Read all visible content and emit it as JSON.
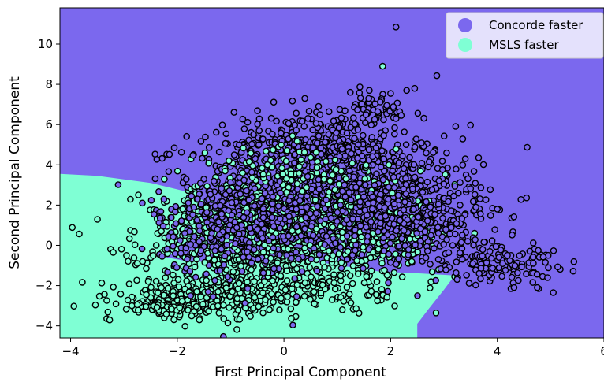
{
  "chart_data": {
    "type": "scatter",
    "title": "",
    "xlabel": "First Principal Component",
    "ylabel": "Second Principal Component",
    "xlim": [
      -4.2,
      6.0
    ],
    "ylim": [
      -4.6,
      11.8
    ],
    "xticks": [
      -4,
      -2,
      0,
      2,
      4,
      6
    ],
    "yticks": [
      -4,
      -2,
      0,
      2,
      4,
      6,
      8,
      10
    ],
    "xtick_labels": [
      "−4",
      "−2",
      "0",
      "2",
      "4",
      "6"
    ],
    "ytick_labels": [
      "−4",
      "−2",
      "0",
      "2",
      "4",
      "6",
      "8",
      "10"
    ],
    "grid": false,
    "legend_position": "top-right",
    "background_regions": {
      "concorde_color": "#7b68ee",
      "msls_color": "#7fffd4",
      "msls_boundary": [
        [
          -4.2,
          3.55
        ],
        [
          -3.5,
          3.45
        ],
        [
          -2.5,
          3.1
        ],
        [
          -1.8,
          2.65
        ],
        [
          -1.5,
          2.2
        ],
        [
          -1.4,
          1.4
        ],
        [
          -1.5,
          0.3
        ],
        [
          -2.0,
          -0.4
        ],
        [
          -2.3,
          -0.55
        ],
        [
          -1.8,
          -0.8
        ],
        [
          -1.0,
          -0.85
        ],
        [
          -0.3,
          -0.6
        ],
        [
          0.2,
          -0.7
        ],
        [
          0.8,
          -0.9
        ],
        [
          1.8,
          -1.3
        ],
        [
          2.6,
          -1.4
        ],
        [
          3.2,
          -1.5
        ],
        [
          3.0,
          -2.2
        ],
        [
          2.7,
          -3.2
        ],
        [
          2.5,
          -3.9
        ],
        [
          2.5,
          -4.6
        ],
        [
          -4.2,
          -4.6
        ]
      ],
      "msls_wedge": [
        [
          -2.6,
          2.7
        ],
        [
          -1.75,
          2.55
        ],
        [
          -1.6,
          2.05
        ],
        [
          -2.2,
          2.45
        ]
      ]
    },
    "series": [
      {
        "name": "Concorde faster",
        "color": "#7b68ee",
        "clusters": [
          {
            "cx": 0.8,
            "cy": 2.6,
            "sx": 1.25,
            "sy": 1.7,
            "n": 1100
          },
          {
            "cx": 0.6,
            "cy": 5.0,
            "sx": 0.75,
            "sy": 1.0,
            "n": 220
          },
          {
            "cx": 2.3,
            "cy": 1.5,
            "sx": 0.7,
            "sy": 1.0,
            "n": 320
          },
          {
            "cx": 3.9,
            "cy": -0.8,
            "sx": 0.6,
            "sy": 0.55,
            "n": 150
          },
          {
            "cx": -0.8,
            "cy": 0.9,
            "sx": 0.8,
            "sy": 1.3,
            "n": 300
          },
          {
            "cx": 1.6,
            "cy": 6.8,
            "sx": 0.4,
            "sy": 0.45,
            "n": 45
          }
        ],
        "extra_points": [
          [
            2.1,
            10.85
          ],
          [
            5.05,
            -2.35
          ],
          [
            4.75,
            -2.1
          ],
          [
            3.65,
            4.35
          ],
          [
            3.4,
            4.3
          ],
          [
            1.6,
            7.7
          ],
          [
            2.45,
            7.8
          ],
          [
            2.3,
            7.7
          ],
          [
            3.6,
            1.9
          ],
          [
            4.0,
            1.8
          ],
          [
            3.3,
            2.0
          ],
          [
            2.0,
            7.55
          ]
        ]
      },
      {
        "name": "MSLS faster",
        "color": "#7fffd4",
        "clusters": [
          {
            "cx": -0.6,
            "cy": 0.3,
            "sx": 1.05,
            "sy": 1.25,
            "n": 650
          },
          {
            "cx": 1.2,
            "cy": 0.4,
            "sx": 1.0,
            "sy": 1.1,
            "n": 380
          },
          {
            "cx": -1.6,
            "cy": -2.6,
            "sx": 0.7,
            "sy": 0.45,
            "n": 260
          },
          {
            "cx": -2.3,
            "cy": -3.05,
            "sx": 0.35,
            "sy": 0.2,
            "n": 70
          },
          {
            "cx": 0.2,
            "cy": 3.5,
            "sx": 0.9,
            "sy": 0.8,
            "n": 120
          },
          {
            "cx": 0.3,
            "cy": -2.3,
            "sx": 0.8,
            "sy": 0.5,
            "n": 130
          }
        ],
        "extra_points": [
          [
            1.85,
            8.9
          ],
          [
            -3.2,
            -0.35
          ],
          [
            -2.75,
            -0.9
          ],
          [
            -2.65,
            -0.8
          ],
          [
            -2.45,
            -0.5
          ],
          [
            -2.85,
            -3.0
          ],
          [
            -2.75,
            -2.95
          ],
          [
            -1.9,
            1.8
          ],
          [
            -1.8,
            1.4
          ],
          [
            3.2,
            -1.55
          ],
          [
            2.9,
            -1.2
          ]
        ]
      }
    ]
  }
}
